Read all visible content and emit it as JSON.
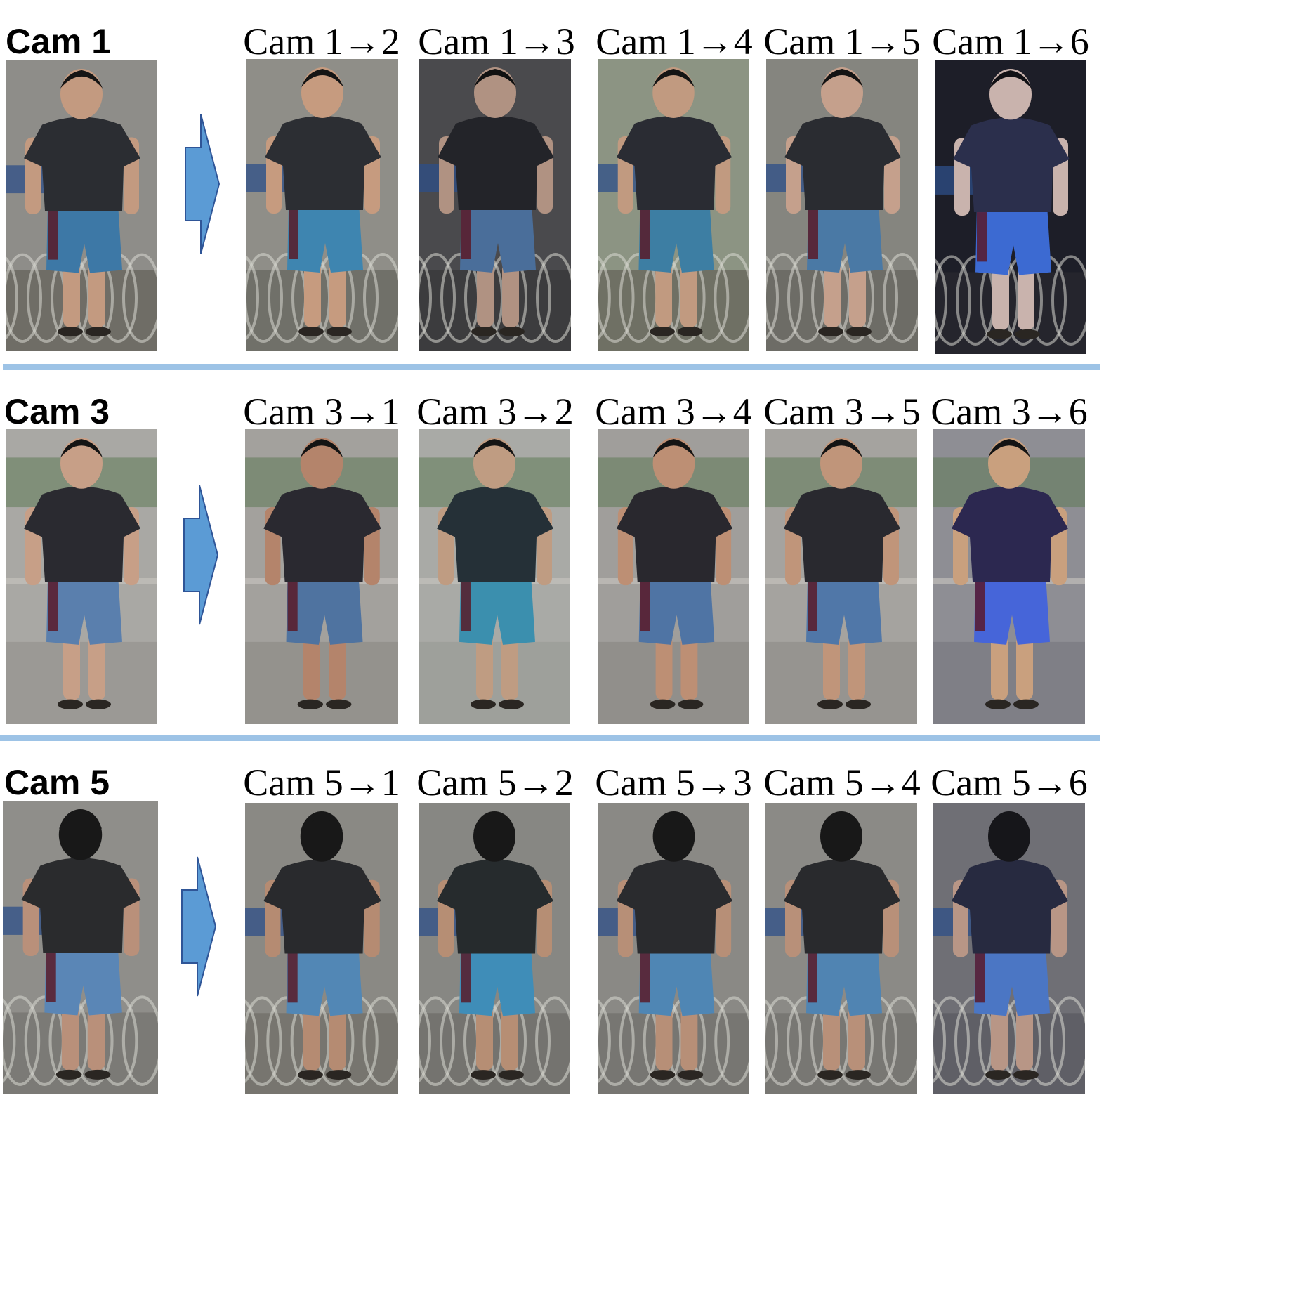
{
  "colors": {
    "divider": "#9dc3e6",
    "arrow_fill": "#5b9bd5",
    "arrow_stroke": "#2f5597"
  },
  "rows": [
    {
      "source_label": "Cam 1",
      "background": "bicycles",
      "pose": "front",
      "generated_labels": [
        "Cam 1→2",
        "Cam 1→3",
        "Cam 1→4",
        "Cam 1→5",
        "Cam 1→6"
      ],
      "palettes": [
        {
          "bg": "#8e8d89",
          "ground": "#6f6d66",
          "shirt": "#2b2d32",
          "shorts": "#3d78a6",
          "skin": "#c39a80",
          "hair": "#151515"
        },
        {
          "bg": "#8f8e88",
          "ground": "#707069",
          "shirt": "#2c2e33",
          "shorts": "#3e85b0",
          "skin": "#c69b7f",
          "hair": "#151515"
        },
        {
          "bg": "#4a4a4d",
          "ground": "#3c3c3e",
          "shirt": "#232429",
          "shorts": "#4a6e9a",
          "skin": "#b09282",
          "hair": "#111111"
        },
        {
          "bg": "#8c9483",
          "ground": "#6f7064",
          "shirt": "#2a2c33",
          "shorts": "#3d7ea3",
          "skin": "#c19a80",
          "hair": "#141414"
        },
        {
          "bg": "#85857f",
          "ground": "#6d6c66",
          "shirt": "#2a2c31",
          "shorts": "#4a79a5",
          "skin": "#c5a08c",
          "hair": "#141414"
        },
        {
          "bg": "#1d1e28",
          "ground": "#25252d",
          "shirt": "#2b2f4c",
          "shorts": "#3c6ad2",
          "skin": "#c9b3ad",
          "hair": "#101014"
        }
      ]
    },
    {
      "source_label": "Cam 3",
      "background": "plaza",
      "pose": "front",
      "generated_labels": [
        "Cam 3→1",
        "Cam 3→2",
        "Cam 3→4",
        "Cam 3→5",
        "Cam 3→6"
      ],
      "palettes": [
        {
          "bg": "#a9a8a4",
          "ground": "#9b9995",
          "shirt": "#2a2a30",
          "shorts": "#5a7fad",
          "skin": "#c79f87",
          "hair": "#141414"
        },
        {
          "bg": "#a3a19d",
          "ground": "#94928d",
          "shirt": "#2a2930",
          "shorts": "#4f73a0",
          "skin": "#b4846b",
          "hair": "#141414"
        },
        {
          "bg": "#a9aaa6",
          "ground": "#9ea09b",
          "shirt": "#253037",
          "shorts": "#3b8fae",
          "skin": "#bf9c82",
          "hair": "#141414"
        },
        {
          "bg": "#a09e9b",
          "ground": "#918f8b",
          "shirt": "#29282e",
          "shorts": "#4f74a4",
          "skin": "#bd8f74",
          "hair": "#141414"
        },
        {
          "bg": "#a5a39f",
          "ground": "#969490",
          "shirt": "#29292f",
          "shorts": "#5077a8",
          "skin": "#c0957a",
          "hair": "#141414"
        },
        {
          "bg": "#8e8e94",
          "ground": "#7f7f86",
          "shirt": "#2c2850",
          "shorts": "#4665d9",
          "skin": "#c9a07e",
          "hair": "#141414"
        }
      ]
    },
    {
      "source_label": "Cam 5",
      "background": "bicycles",
      "pose": "back",
      "generated_labels": [
        "Cam 5→1",
        "Cam 5→2",
        "Cam 5→3",
        "Cam 5→4",
        "Cam 5→6"
      ],
      "palettes": [
        {
          "bg": "#8f8e8a",
          "ground": "#7b7a76",
          "shirt": "#2a2b2d",
          "shorts": "#5a86b6",
          "skin": "#b9907a",
          "hair": "#181818"
        },
        {
          "bg": "#8a8984",
          "ground": "#77756f",
          "shirt": "#292a2d",
          "shorts": "#5287b5",
          "skin": "#b58b72",
          "hair": "#181818"
        },
        {
          "bg": "#878783",
          "ground": "#74736f",
          "shirt": "#262b2d",
          "shorts": "#3f8db8",
          "skin": "#b68e74",
          "hair": "#181818"
        },
        {
          "bg": "#8a8985",
          "ground": "#777672",
          "shirt": "#2a2b2e",
          "shorts": "#4f86b4",
          "skin": "#b78f77",
          "hair": "#181818"
        },
        {
          "bg": "#8b8a86",
          "ground": "#787773",
          "shirt": "#292a2d",
          "shorts": "#5084b2",
          "skin": "#b89079",
          "hair": "#181818"
        },
        {
          "bg": "#6f6f75",
          "ground": "#5f5f66",
          "shirt": "#272a40",
          "shorts": "#4b76c4",
          "skin": "#b89686",
          "hair": "#16161a"
        }
      ]
    }
  ]
}
